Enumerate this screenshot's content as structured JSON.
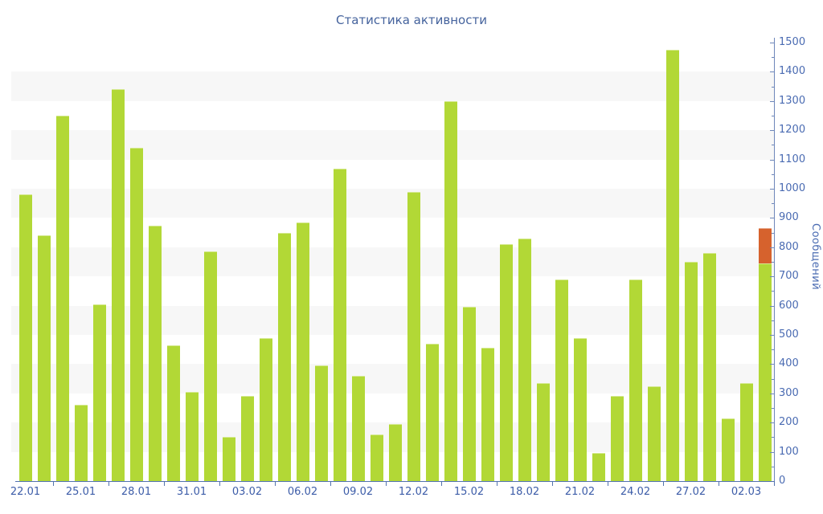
{
  "chart_data": {
    "type": "bar",
    "title": "Статистика активности",
    "ylabel": "Сообщений",
    "xlabel": "",
    "ylim": [
      0,
      1500
    ],
    "y_major_step": 100,
    "y_minor_step": 50,
    "grid": "alternating horizontal stripes (gray bands at 100-200, 300-400, ... 1300-1400)",
    "legend_position": "none",
    "stacked": true,
    "categories": [
      "22.01",
      "23.01",
      "24.01",
      "25.01",
      "26.01",
      "27.01",
      "28.01",
      "29.01",
      "30.01",
      "31.01",
      "01.02",
      "02.02",
      "03.02",
      "04.02",
      "05.02",
      "06.02",
      "07.02",
      "08.02",
      "09.02",
      "10.02",
      "11.02",
      "12.02",
      "13.02",
      "14.02",
      "15.02",
      "16.02",
      "17.02",
      "18.02",
      "19.02",
      "20.02",
      "21.02",
      "22.02",
      "23.02",
      "24.02",
      "25.02",
      "26.02",
      "27.02",
      "28.02",
      "01.03",
      "02.03",
      "03.03"
    ],
    "x_tick_labels": [
      "22.01",
      "25.01",
      "28.01",
      "31.01",
      "03.02",
      "06.02",
      "09.02",
      "12.02",
      "15.02",
      "18.02",
      "21.02",
      "24.02",
      "27.02",
      "02.03"
    ],
    "series": [
      {
        "name": "messages",
        "color": "#b2d836",
        "values": [
          980,
          840,
          1250,
          260,
          605,
          1340,
          1140,
          875,
          465,
          305,
          785,
          150,
          290,
          490,
          850,
          885,
          395,
          1070,
          360,
          160,
          195,
          990,
          470,
          1300,
          595,
          455,
          810,
          830,
          335,
          690,
          490,
          95,
          290,
          690,
          325,
          1475,
          750,
          780,
          215,
          335,
          745
        ]
      },
      {
        "name": "highlight-segment-current-day",
        "color": "#d6622d",
        "values": [
          0,
          0,
          0,
          0,
          0,
          0,
          0,
          0,
          0,
          0,
          0,
          0,
          0,
          0,
          0,
          0,
          0,
          0,
          0,
          0,
          0,
          0,
          0,
          0,
          0,
          0,
          0,
          0,
          0,
          0,
          0,
          0,
          0,
          0,
          0,
          0,
          0,
          0,
          0,
          0,
          120
        ]
      }
    ]
  },
  "colors": {
    "bar_green": "#b2d836",
    "bar_orange": "#d6622d",
    "stripe_gray": "#f7f7f7",
    "axis_blue": "#5272ae",
    "tick_label_blue": "#4a6bb2",
    "x_label_blue": "#3c5ca8",
    "title_blue": "#45639d",
    "background": "#ffffff"
  }
}
